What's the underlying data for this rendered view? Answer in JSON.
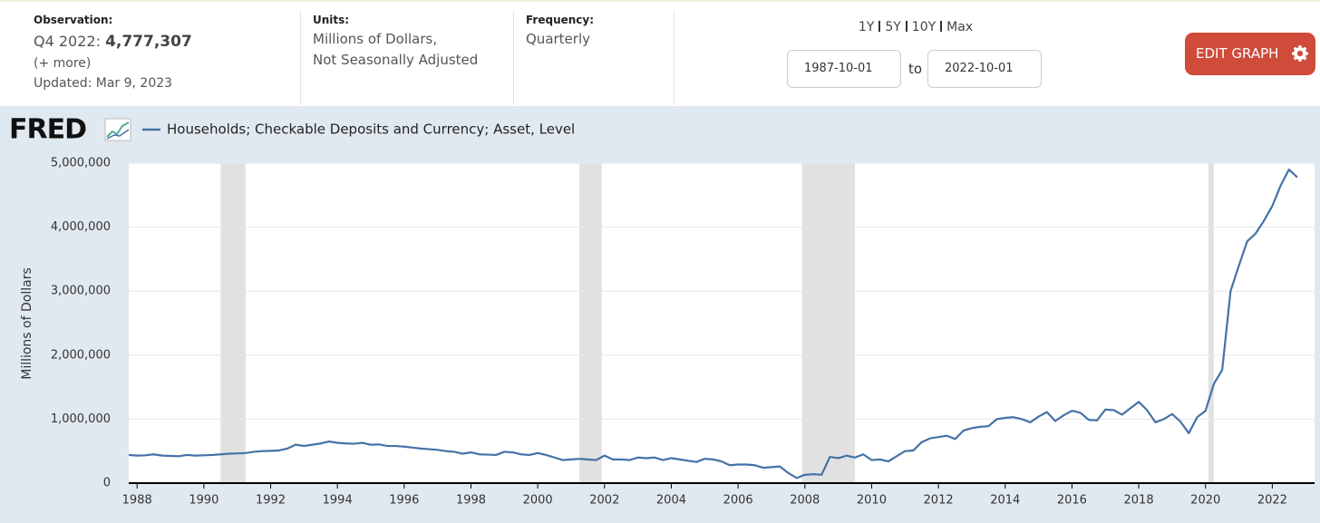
{
  "header": {
    "observation": {
      "label": "Observation:",
      "period": "Q4 2022:",
      "value": "4,777,307",
      "more": "(+ more)",
      "updated": "Updated: Mar 9, 2023"
    },
    "units": {
      "label": "Units:",
      "lines": [
        "Millions of Dollars,",
        "Not Seasonally Adjusted"
      ]
    },
    "frequency": {
      "label": "Frequency:",
      "value": "Quarterly"
    },
    "ranges": [
      "1Y",
      "5Y",
      "10Y",
      "Max"
    ],
    "date_from": "1987-10-01",
    "date_to_label": "to",
    "date_to": "2022-10-01",
    "button": "EDIT GRAPH"
  },
  "chart_data": {
    "type": "line",
    "logo": "FRED",
    "ylabel": "Millions of Dollars",
    "x": [
      1987.75,
      1988,
      1988.25,
      1988.5,
      1988.75,
      1989,
      1989.25,
      1989.5,
      1989.75,
      1990,
      1990.25,
      1990.5,
      1990.75,
      1991,
      1991.25,
      1991.5,
      1991.75,
      1992,
      1992.25,
      1992.5,
      1992.75,
      1993,
      1993.25,
      1993.5,
      1993.75,
      1994,
      1994.25,
      1994.5,
      1994.75,
      1995,
      1995.25,
      1995.5,
      1995.75,
      1996,
      1996.25,
      1996.5,
      1996.75,
      1997,
      1997.25,
      1997.5,
      1997.75,
      1998,
      1998.25,
      1998.5,
      1998.75,
      1999,
      1999.25,
      1999.5,
      1999.75,
      2000,
      2000.25,
      2000.5,
      2000.75,
      2001,
      2001.25,
      2001.5,
      2001.75,
      2002,
      2002.25,
      2002.5,
      2002.75,
      2003,
      2003.25,
      2003.5,
      2003.75,
      2004,
      2004.25,
      2004.5,
      2004.75,
      2005,
      2005.25,
      2005.5,
      2005.75,
      2006,
      2006.25,
      2006.5,
      2006.75,
      2007,
      2007.25,
      2007.5,
      2007.75,
      2008,
      2008.25,
      2008.5,
      2008.75,
      2009,
      2009.25,
      2009.5,
      2009.75,
      2010,
      2010.25,
      2010.5,
      2010.75,
      2011,
      2011.25,
      2011.5,
      2011.75,
      2012,
      2012.25,
      2012.5,
      2012.75,
      2013,
      2013.25,
      2013.5,
      2013.75,
      2014,
      2014.25,
      2014.5,
      2014.75,
      2015,
      2015.25,
      2015.5,
      2015.75,
      2016,
      2016.25,
      2016.5,
      2016.75,
      2017,
      2017.25,
      2017.5,
      2017.75,
      2018,
      2018.25,
      2018.5,
      2018.75,
      2019,
      2019.25,
      2019.5,
      2019.75,
      2020,
      2020.25,
      2020.5,
      2020.75,
      2021,
      2021.25,
      2021.5,
      2021.75,
      2022,
      2022.25,
      2022.5,
      2022.75
    ],
    "series": [
      {
        "name": "Households; Checkable Deposits and Currency; Asset, Level",
        "color": "#4572a7",
        "values": [
          440000,
          430000,
          435000,
          450000,
          430000,
          425000,
          420000,
          440000,
          430000,
          435000,
          440000,
          450000,
          460000,
          465000,
          470000,
          490000,
          500000,
          505000,
          510000,
          540000,
          600000,
          580000,
          600000,
          620000,
          650000,
          630000,
          620000,
          615000,
          630000,
          600000,
          605000,
          580000,
          580000,
          570000,
          555000,
          540000,
          530000,
          520000,
          500000,
          490000,
          460000,
          480000,
          450000,
          445000,
          440000,
          490000,
          480000,
          450000,
          440000,
          470000,
          440000,
          400000,
          360000,
          370000,
          380000,
          370000,
          360000,
          430000,
          370000,
          370000,
          360000,
          400000,
          390000,
          400000,
          360000,
          390000,
          370000,
          350000,
          330000,
          380000,
          370000,
          340000,
          280000,
          290000,
          290000,
          280000,
          240000,
          250000,
          260000,
          160000,
          80000,
          130000,
          140000,
          130000,
          410000,
          390000,
          430000,
          400000,
          450000,
          360000,
          370000,
          340000,
          420000,
          500000,
          510000,
          640000,
          700000,
          720000,
          740000,
          690000,
          820000,
          860000,
          880000,
          890000,
          1000000,
          1020000,
          1030000,
          1000000,
          950000,
          1040000,
          1110000,
          970000,
          1060000,
          1130000,
          1100000,
          990000,
          980000,
          1150000,
          1140000,
          1070000,
          1170000,
          1270000,
          1140000,
          950000,
          1000000,
          1080000,
          960000,
          780000,
          1030000,
          1130000,
          1550000,
          1770000,
          3000000,
          3400000,
          3780000,
          3900000,
          4100000,
          4330000,
          4650000,
          4900000,
          4777307
        ]
      }
    ],
    "recessions": [
      [
        1990.5,
        1991.25
      ],
      [
        2001.25,
        2001.917
      ],
      [
        2007.917,
        2009.5
      ],
      [
        2020.083,
        2020.25
      ]
    ],
    "recession_color": "#e1e1e1",
    "xlim": [
      1987.75,
      2022.75
    ],
    "xticks": [
      1988,
      1990,
      1992,
      1994,
      1996,
      1998,
      2000,
      2002,
      2004,
      2006,
      2008,
      2010,
      2012,
      2014,
      2016,
      2018,
      2020,
      2022
    ],
    "ylim": [
      0,
      5000000
    ],
    "yticks": [
      0,
      {
        "value": 1000000,
        "label": "1,000,000"
      },
      {
        "value": 2000000,
        "label": "2,000,000"
      },
      {
        "value": 3000000,
        "label": "3,000,000"
      },
      {
        "value": 4000000,
        "label": "4,000,000"
      },
      {
        "value": 5000000,
        "label": "5,000,000"
      }
    ],
    "grid": true
  }
}
